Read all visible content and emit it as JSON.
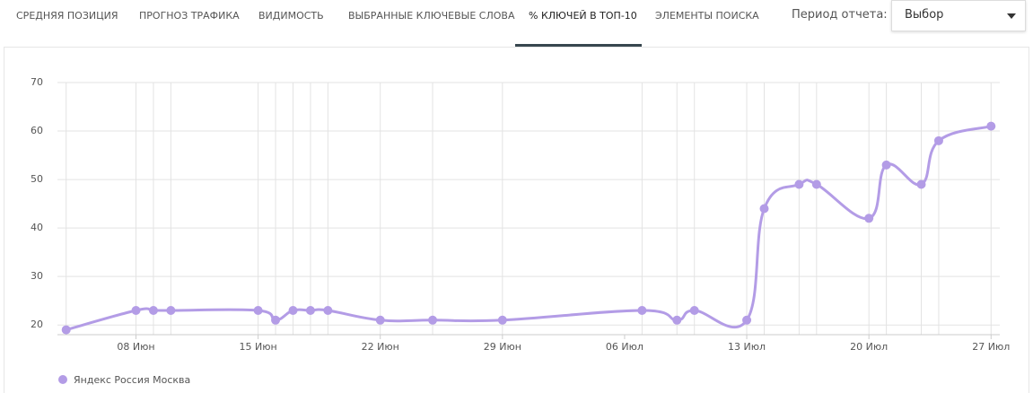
{
  "tabs": [
    "СРЕДНЯЯ ПОЗИЦИЯ",
    "ПРОГНОЗ ТРАФИКА",
    "ВИДИМОСТЬ",
    "ВЫБРАННЫЕ КЛЮЧЕВЫЕ СЛОВА",
    "% КЛЮЧЕЙ В ТОП-10",
    "ЭЛЕМЕНТЫ ПОИСКА"
  ],
  "period_label": "Период отчета:",
  "period_select": "Выбор",
  "chart_data": {
    "type": "line",
    "x": [
      4,
      8,
      9,
      10,
      15,
      16,
      17,
      18,
      19,
      22,
      25,
      29,
      37,
      39,
      40,
      43,
      44,
      46,
      47,
      50,
      51,
      53,
      54,
      57
    ],
    "series": [
      {
        "name": "Яндекс Россия Москва",
        "color": "#b39ce6",
        "values": [
          19,
          23,
          23,
          23,
          23,
          21,
          23,
          23,
          23,
          21,
          21,
          21,
          23,
          21,
          23,
          21,
          44,
          49,
          49,
          42,
          53,
          49,
          58,
          61
        ]
      }
    ],
    "xlim": [
      3.5,
      57.5
    ],
    "xticks": [
      {
        "value": 8,
        "label": "08 Июн"
      },
      {
        "value": 15,
        "label": "15 Июн"
      },
      {
        "value": 22,
        "label": "22 Июн"
      },
      {
        "value": 29,
        "label": "29 Июн"
      },
      {
        "value": 36,
        "label": "06 Июл"
      },
      {
        "value": 43,
        "label": "13 Июл"
      },
      {
        "value": 50,
        "label": "20 Июл"
      },
      {
        "value": 57,
        "label": "27 Июл"
      }
    ],
    "ylim": [
      18,
      70
    ],
    "yticks": [
      20,
      30,
      40,
      50,
      60,
      70
    ],
    "grid": true,
    "legend": "bottom-left"
  }
}
